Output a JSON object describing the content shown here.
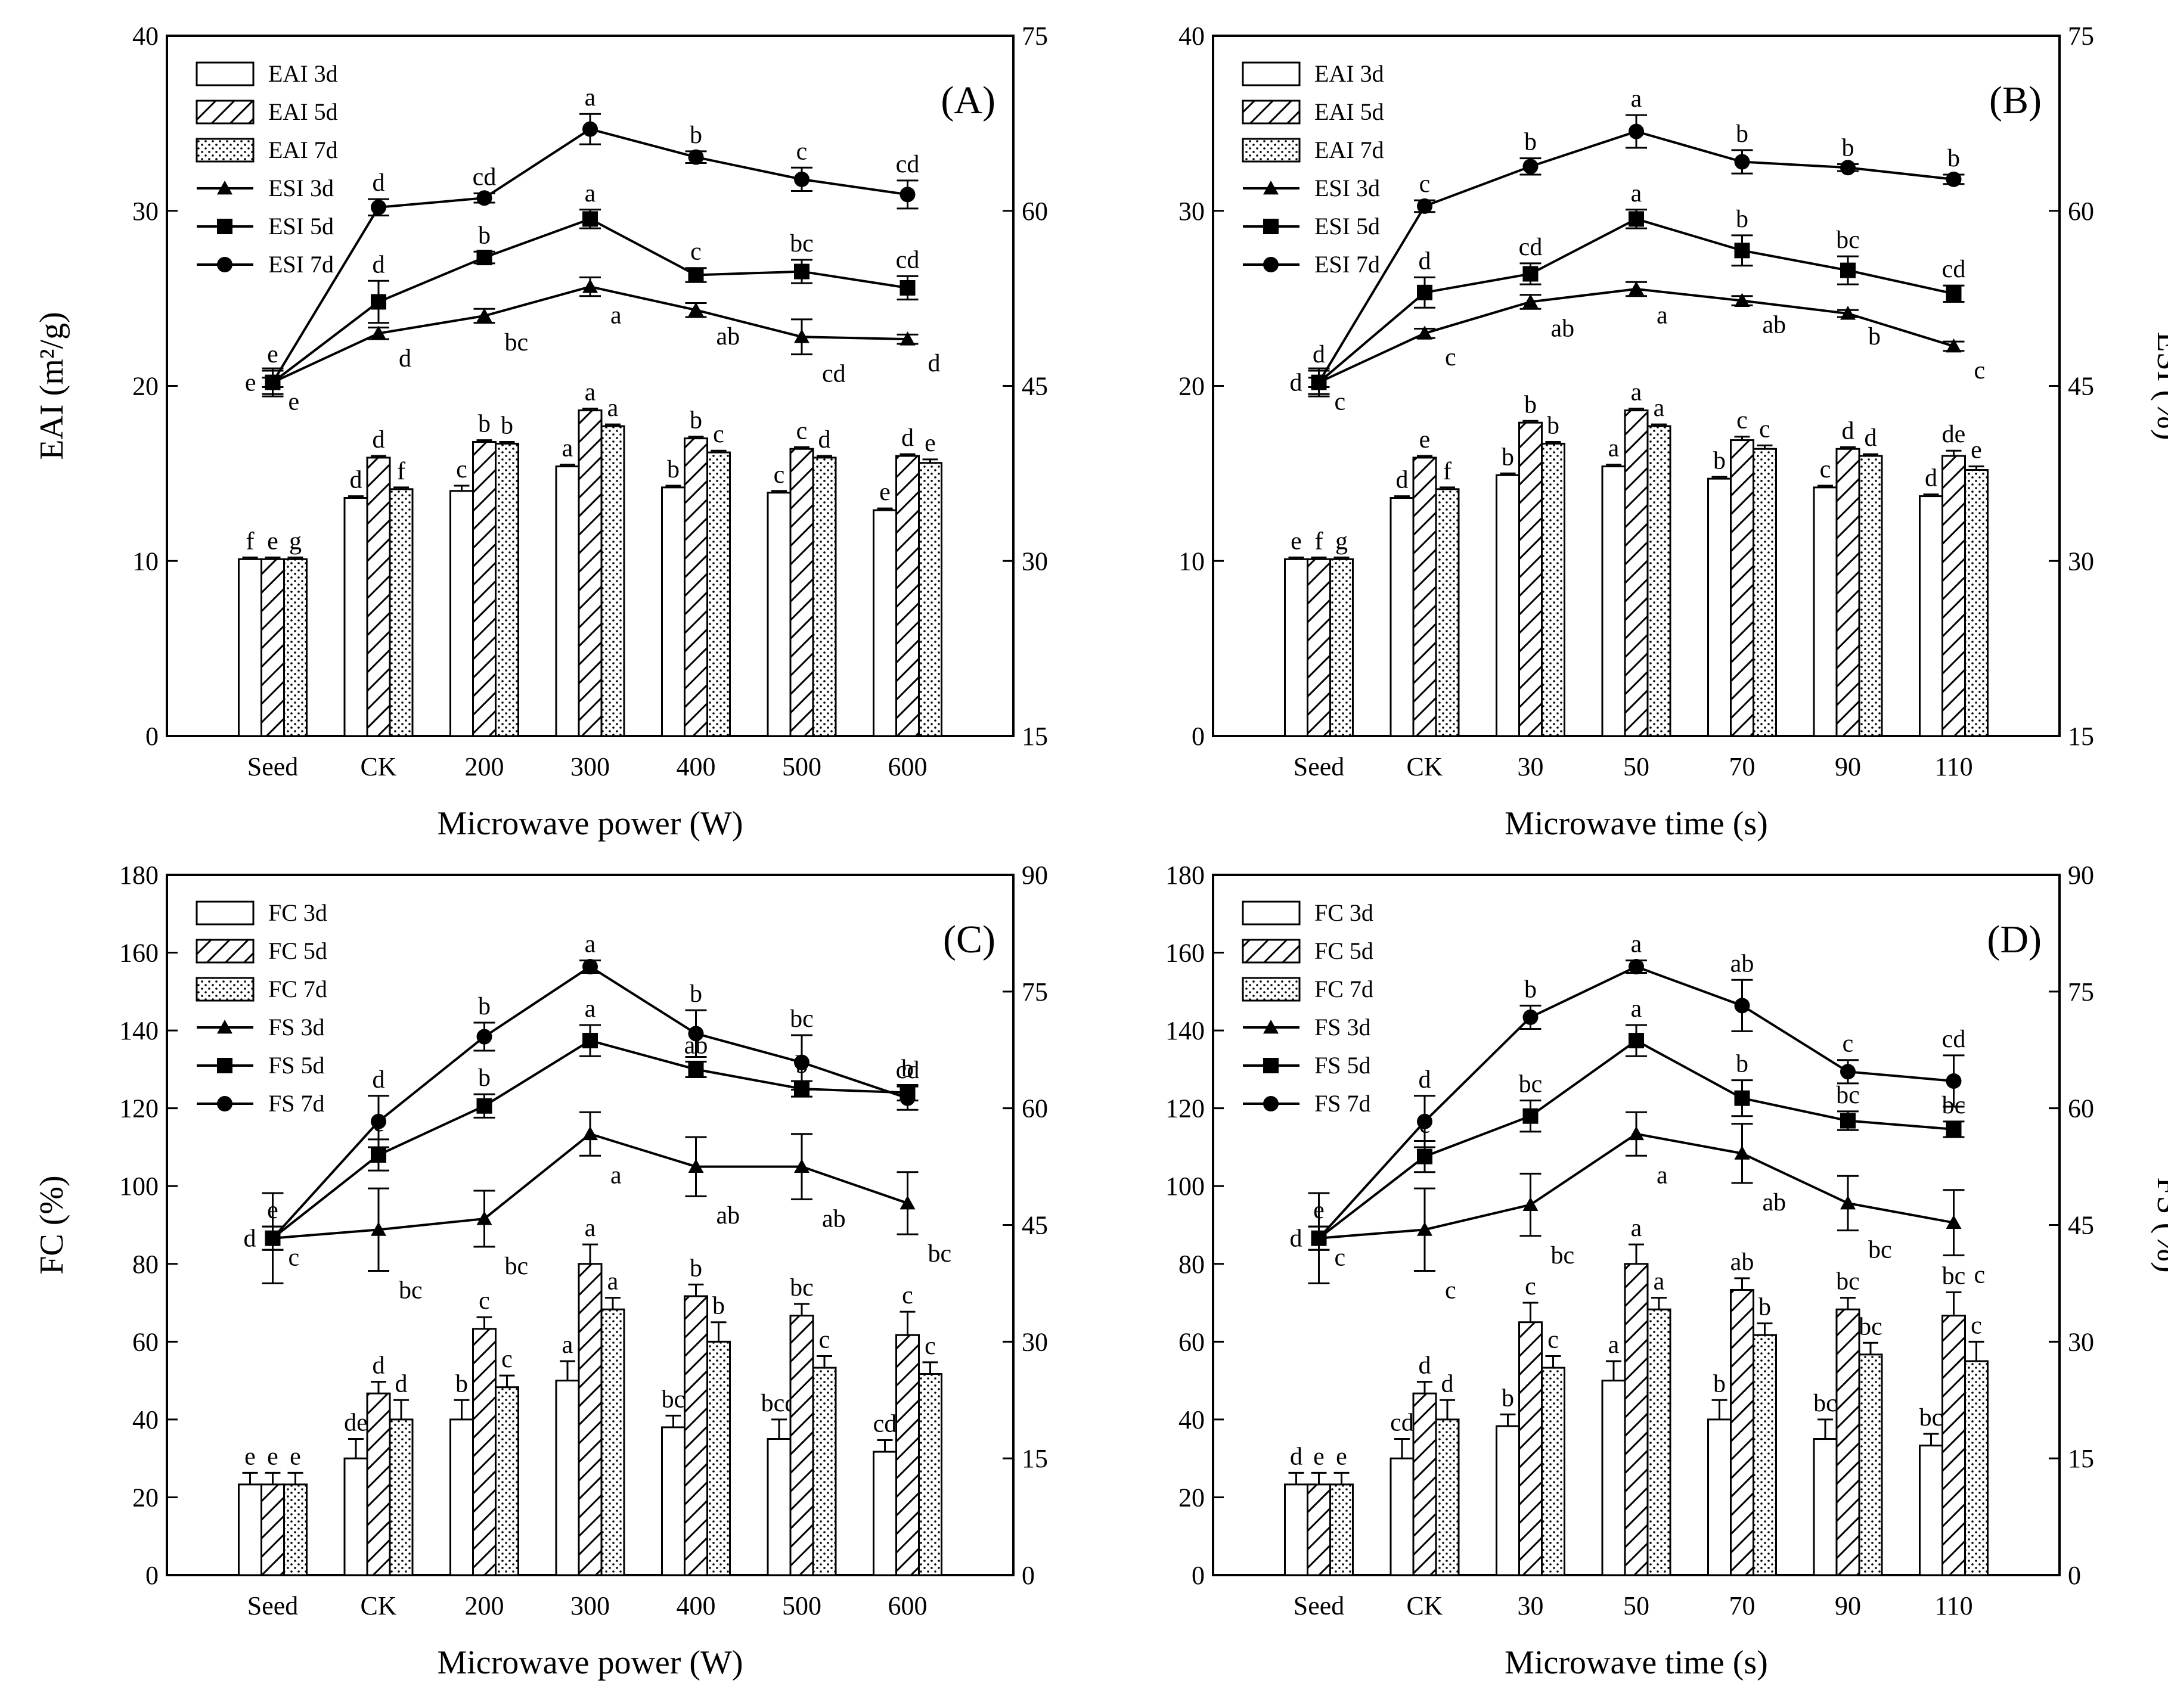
{
  "chart_data": [
    {
      "type": "bar",
      "panel_label": "(A)",
      "xlabel": "Microwave power (W)",
      "ylabel": "EAI (m²/g)",
      "ylabel_right": "",
      "categories": [
        "Seed",
        "CK",
        "200",
        "300",
        "400",
        "500",
        "600"
      ],
      "ylim": [
        0,
        40
      ],
      "yticks": [
        0,
        10,
        20,
        30,
        40
      ],
      "ylim_right": [
        15,
        75
      ],
      "yticks_right": [
        15,
        30,
        45,
        60,
        75
      ],
      "bar_series": [
        {
          "name": "EAI 3d",
          "values": [
            10.1,
            13.6,
            14.0,
            15.4,
            14.2,
            13.9,
            12.9
          ],
          "err": [
            0.1,
            0.1,
            0.3,
            0.1,
            0.1,
            0.1,
            0.1
          ],
          "labels": [
            "f",
            "d",
            "c",
            "a",
            "b",
            "c",
            "e"
          ]
        },
        {
          "name": "EAI 5d",
          "values": [
            10.1,
            15.9,
            16.8,
            18.6,
            17.0,
            16.4,
            16.0
          ],
          "err": [
            0.1,
            0.1,
            0.1,
            0.1,
            0.1,
            0.1,
            0.1
          ],
          "labels": [
            "e",
            "d",
            "b",
            "a",
            "b",
            "c",
            "d"
          ]
        },
        {
          "name": "EAI 7d",
          "values": [
            10.1,
            14.1,
            16.7,
            17.7,
            16.2,
            15.9,
            15.6
          ],
          "err": [
            0.1,
            0.1,
            0.1,
            0.1,
            0.1,
            0.1,
            0.2
          ],
          "labels": [
            "g",
            "f",
            "b",
            "a",
            "c",
            "d",
            "e"
          ]
        }
      ],
      "line_series": [
        {
          "name": "ESI 3d",
          "values": [
            45.3,
            49.5,
            51.0,
            53.5,
            51.5,
            49.2,
            49.0
          ],
          "err": [
            0.4,
            0.5,
            0.6,
            0.8,
            0.6,
            1.5,
            0.4
          ],
          "labels": [
            "e",
            "d",
            "bc",
            "a",
            "ab",
            "cd",
            "d"
          ]
        },
        {
          "name": "ESI 5d",
          "values": [
            45.3,
            52.2,
            56.0,
            59.3,
            54.5,
            54.8,
            53.4
          ],
          "err": [
            1.2,
            1.8,
            0.5,
            0.8,
            0.6,
            1.0,
            1.0
          ],
          "labels": [
            "e",
            "d",
            "b",
            "a",
            "c",
            "bc",
            "cd"
          ]
        },
        {
          "name": "ESI 7d",
          "values": [
            45.3,
            60.3,
            61.1,
            67.0,
            64.6,
            62.7,
            61.4
          ],
          "err": [
            1.0,
            0.7,
            0.4,
            1.3,
            0.5,
            1.0,
            1.2
          ],
          "labels": [
            "e",
            "d",
            "cd",
            "a",
            "b",
            "c",
            "cd"
          ]
        }
      ]
    },
    {
      "type": "bar",
      "panel_label": "(B)",
      "xlabel": "Microwave time (s)",
      "ylabel": "",
      "ylabel_right": "ESI (%)",
      "categories": [
        "Seed",
        "CK",
        "30",
        "50",
        "70",
        "90",
        "110"
      ],
      "ylim": [
        0,
        40
      ],
      "yticks": [
        0,
        10,
        20,
        30,
        40
      ],
      "ylim_right": [
        15,
        75
      ],
      "yticks_right": [
        15,
        30,
        45,
        60,
        75
      ],
      "bar_series": [
        {
          "name": "EAI 3d",
          "values": [
            10.1,
            13.6,
            14.9,
            15.4,
            14.7,
            14.2,
            13.7
          ],
          "err": [
            0.1,
            0.1,
            0.1,
            0.1,
            0.1,
            0.1,
            0.1
          ],
          "labels": [
            "e",
            "d",
            "b",
            "a",
            "b",
            "c",
            "d"
          ]
        },
        {
          "name": "EAI 5d",
          "values": [
            10.1,
            15.9,
            17.9,
            18.6,
            16.9,
            16.4,
            16.0
          ],
          "err": [
            0.1,
            0.1,
            0.1,
            0.1,
            0.2,
            0.1,
            0.3
          ],
          "labels": [
            "f",
            "e",
            "b",
            "a",
            "c",
            "d",
            "de"
          ]
        },
        {
          "name": "EAI 7d",
          "values": [
            10.1,
            14.1,
            16.7,
            17.7,
            16.4,
            16.0,
            15.2
          ],
          "err": [
            0.1,
            0.1,
            0.1,
            0.1,
            0.2,
            0.1,
            0.2
          ],
          "labels": [
            "g",
            "f",
            "b",
            "a",
            "c",
            "d",
            "e"
          ]
        }
      ],
      "line_series": [
        {
          "name": "ESI 3d",
          "values": [
            45.3,
            49.5,
            52.2,
            53.3,
            52.3,
            51.2,
            48.4
          ],
          "err": [
            0.4,
            0.4,
            0.6,
            0.6,
            0.4,
            0.3,
            0.4
          ],
          "labels": [
            "c",
            "c",
            "ab",
            "a",
            "ab",
            "b",
            "c"
          ]
        },
        {
          "name": "ESI 5d",
          "values": [
            45.3,
            53.0,
            54.6,
            59.3,
            56.6,
            54.9,
            52.9
          ],
          "err": [
            1.2,
            1.3,
            0.9,
            0.8,
            1.3,
            1.2,
            0.7
          ],
          "labels": [
            "d",
            "d",
            "cd",
            "a",
            "b",
            "bc",
            "cd"
          ]
        },
        {
          "name": "ESI 7d",
          "values": [
            45.3,
            60.4,
            63.8,
            66.8,
            64.2,
            63.7,
            62.7
          ],
          "err": [
            1.0,
            0.5,
            0.7,
            1.4,
            1.0,
            0.3,
            0.4
          ],
          "labels": [
            "d",
            "c",
            "b",
            "a",
            "b",
            "b",
            "b"
          ]
        }
      ]
    },
    {
      "type": "bar",
      "panel_label": "(C)",
      "xlabel": "Microwave power (W)",
      "ylabel": "FC (%)",
      "ylabel_right": "",
      "categories": [
        "Seed",
        "CK",
        "200",
        "300",
        "400",
        "500",
        "600"
      ],
      "ylim": [
        0,
        180
      ],
      "yticks": [
        0,
        20,
        40,
        60,
        80,
        100,
        120,
        140,
        160,
        180
      ],
      "ylim_right": [
        0,
        90
      ],
      "yticks_right": [
        0,
        15,
        30,
        45,
        60,
        75,
        90
      ],
      "bar_series": [
        {
          "name": "FC 3d",
          "values": [
            23.3,
            30.0,
            40.0,
            50.0,
            38.0,
            35.0,
            31.7
          ],
          "err": [
            3,
            5,
            5,
            5,
            3,
            5,
            3
          ],
          "labels": [
            "e",
            "de",
            "b",
            "a",
            "bc",
            "bcd",
            "cd"
          ]
        },
        {
          "name": "FC 5d",
          "values": [
            23.3,
            46.7,
            63.3,
            80.0,
            71.7,
            66.7,
            61.7
          ],
          "err": [
            3,
            3,
            3,
            5,
            3,
            3,
            6
          ],
          "labels": [
            "e",
            "d",
            "c",
            "a",
            "b",
            "bc",
            "c"
          ]
        },
        {
          "name": "FC 7d",
          "values": [
            23.3,
            40.0,
            48.3,
            68.3,
            60.0,
            53.3,
            51.7
          ],
          "err": [
            3,
            5,
            3,
            3,
            5,
            3,
            3
          ],
          "labels": [
            "e",
            "d",
            "c",
            "a",
            "b",
            "c",
            "c"
          ]
        }
      ],
      "line_series": [
        {
          "name": "FS 3d",
          "values": [
            43.3,
            44.4,
            45.8,
            56.7,
            52.5,
            52.5,
            47.8
          ],
          "err": [
            5.8,
            5.3,
            3.6,
            2.8,
            3.8,
            4.2,
            4.0
          ],
          "labels": [
            "c",
            "bc",
            "bc",
            "a",
            "ab",
            "ab",
            "bc"
          ]
        },
        {
          "name": "FS 5d",
          "values": [
            43.3,
            54.0,
            60.3,
            68.7,
            65.0,
            62.5,
            62.0
          ],
          "err": [
            1.5,
            2.0,
            1.5,
            2.0,
            1.0,
            1.0,
            1.0
          ],
          "labels": [
            "d",
            "c",
            "b",
            "a",
            "ab",
            "b",
            "b"
          ]
        },
        {
          "name": "FS 7d",
          "values": [
            43.3,
            58.3,
            69.2,
            78.2,
            69.6,
            65.9,
            61.3
          ],
          "err": [
            1.5,
            3.3,
            1.8,
            0.8,
            3.0,
            3.5,
            1.5
          ],
          "labels": [
            "e",
            "d",
            "b",
            "a",
            "b",
            "bc",
            "cd"
          ]
        }
      ]
    },
    {
      "type": "bar",
      "panel_label": "(D)",
      "xlabel": "Microwave time (s)",
      "ylabel": "",
      "ylabel_right": "FS (%)",
      "categories": [
        "Seed",
        "CK",
        "30",
        "50",
        "70",
        "90",
        "110"
      ],
      "ylim": [
        0,
        180
      ],
      "yticks": [
        0,
        20,
        40,
        60,
        80,
        100,
        120,
        140,
        160,
        180
      ],
      "ylim_right": [
        0,
        90
      ],
      "yticks_right": [
        0,
        15,
        30,
        45,
        60,
        75,
        90
      ],
      "bar_series": [
        {
          "name": "FC 3d",
          "values": [
            23.3,
            30.0,
            38.3,
            50.0,
            40.0,
            35.0,
            33.3
          ],
          "err": [
            3,
            5,
            3,
            5,
            5,
            5,
            3
          ],
          "labels": [
            "d",
            "cd",
            "b",
            "a",
            "b",
            "bc",
            "bc"
          ]
        },
        {
          "name": "FC 5d",
          "values": [
            23.3,
            46.7,
            65.0,
            80.0,
            73.3,
            68.3,
            66.7
          ],
          "err": [
            3,
            3,
            5,
            5,
            3,
            3,
            6
          ],
          "labels": [
            "e",
            "d",
            "c",
            "a",
            "ab",
            "bc",
            "bc"
          ]
        },
        {
          "name": "FC 7d",
          "values": [
            23.3,
            40.0,
            53.3,
            68.3,
            61.7,
            56.7,
            55.0
          ],
          "err": [
            3,
            5,
            3,
            3,
            3,
            3,
            5
          ],
          "labels": [
            "e",
            "d",
            "c",
            "a",
            "b",
            "bc",
            "c"
          ]
        }
      ],
      "line_series": [
        {
          "name": "FS 3d",
          "values": [
            43.3,
            44.4,
            47.6,
            56.7,
            54.2,
            47.8,
            45.3
          ],
          "err": [
            5.8,
            5.3,
            4.0,
            2.8,
            3.8,
            3.5,
            4.2
          ],
          "labels": [
            "c",
            "c",
            "bc",
            "a",
            "ab",
            "bc",
            "c"
          ]
        },
        {
          "name": "FS 5d",
          "values": [
            43.3,
            53.8,
            59.0,
            68.7,
            61.3,
            58.4,
            57.3
          ],
          "err": [
            1.5,
            2.0,
            2.0,
            2.0,
            2.3,
            1.2,
            1.0
          ],
          "labels": [
            "d",
            "c",
            "bc",
            "a",
            "b",
            "bc",
            "bc"
          ]
        },
        {
          "name": "FS 7d",
          "values": [
            43.3,
            58.3,
            71.7,
            78.2,
            73.2,
            64.7,
            63.5
          ],
          "err": [
            1.5,
            3.3,
            1.5,
            0.8,
            3.3,
            1.5,
            3.3
          ],
          "labels": [
            "e",
            "d",
            "b",
            "a",
            "ab",
            "c",
            "cd"
          ]
        }
      ]
    }
  ]
}
